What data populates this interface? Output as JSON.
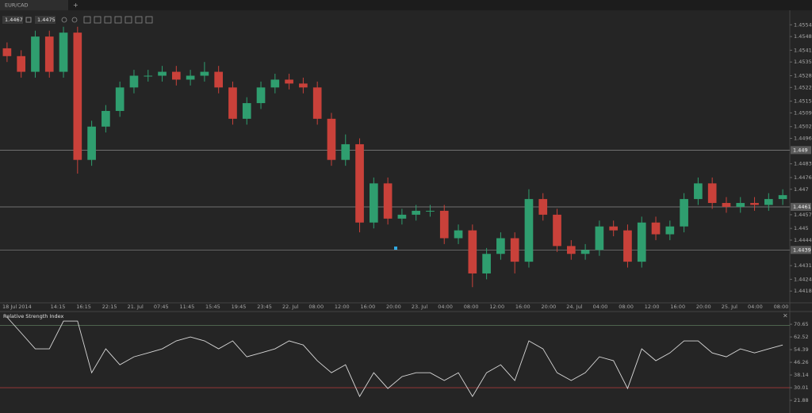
{
  "tab": {
    "label": "EUR/CAD"
  },
  "toolbar": {
    "bid": "1.4467",
    "ask": "1.4475"
  },
  "chart_data": [
    {
      "type": "candlestick",
      "open": [
        1.4542,
        1.4538,
        1.453,
        1.4548,
        1.453,
        1.455,
        1.4485,
        1.4502,
        1.451,
        1.4522,
        1.4528,
        1.4528,
        1.453,
        1.4526,
        1.4528,
        1.453,
        1.4522,
        1.4506,
        1.4514,
        1.4522,
        1.4526,
        1.4524,
        1.4522,
        1.4506,
        1.4485,
        1.4493,
        1.4453,
        1.4473,
        1.4455,
        1.4457,
        1.4459,
        1.4459,
        1.4445,
        1.4449,
        1.4427,
        1.4437,
        1.4445,
        1.4433,
        1.4465,
        1.4457,
        1.4441,
        1.4437,
        1.4439,
        1.4451,
        1.4449,
        1.4433,
        1.4453,
        1.4447,
        1.4451,
        1.4465,
        1.4473,
        1.4463,
        1.4461,
        1.4463,
        1.4462,
        1.4465
      ],
      "high": [
        1.4545,
        1.4541,
        1.4551,
        1.4551,
        1.4553,
        1.4553,
        1.4505,
        1.4513,
        1.4525,
        1.4531,
        1.4531,
        1.4533,
        1.4533,
        1.4531,
        1.4535,
        1.4533,
        1.4525,
        1.4517,
        1.4525,
        1.4529,
        1.4529,
        1.4527,
        1.4525,
        1.4509,
        1.4498,
        1.4496,
        1.4476,
        1.4476,
        1.446,
        1.4462,
        1.4462,
        1.4462,
        1.4452,
        1.4452,
        1.444,
        1.4448,
        1.4448,
        1.447,
        1.4468,
        1.446,
        1.4444,
        1.4442,
        1.4454,
        1.4454,
        1.4452,
        1.4456,
        1.4456,
        1.4454,
        1.4468,
        1.4476,
        1.4476,
        1.4466,
        1.4466,
        1.4466,
        1.4468,
        1.447
      ],
      "low": [
        1.4535,
        1.4527,
        1.4527,
        1.4527,
        1.4527,
        1.4478,
        1.4482,
        1.4499,
        1.4507,
        1.4519,
        1.4525,
        1.4525,
        1.4523,
        1.4523,
        1.4525,
        1.4519,
        1.4503,
        1.4503,
        1.4511,
        1.4519,
        1.4521,
        1.4519,
        1.4503,
        1.4482,
        1.4482,
        1.4448,
        1.445,
        1.4452,
        1.4452,
        1.4454,
        1.4456,
        1.4442,
        1.4442,
        1.442,
        1.4424,
        1.4434,
        1.4427,
        1.443,
        1.4454,
        1.4438,
        1.4434,
        1.4434,
        1.4436,
        1.4446,
        1.443,
        1.443,
        1.4444,
        1.4444,
        1.4448,
        1.4462,
        1.446,
        1.4458,
        1.4458,
        1.4459,
        1.4459,
        1.4462
      ],
      "close": [
        1.4538,
        1.453,
        1.4548,
        1.453,
        1.455,
        1.4485,
        1.4502,
        1.451,
        1.4522,
        1.4528,
        1.4528,
        1.453,
        1.4526,
        1.4528,
        1.453,
        1.4522,
        1.4506,
        1.4514,
        1.4522,
        1.4526,
        1.4524,
        1.4522,
        1.4506,
        1.4485,
        1.4493,
        1.4453,
        1.4473,
        1.4455,
        1.4457,
        1.4459,
        1.4459,
        1.4445,
        1.4449,
        1.4427,
        1.4437,
        1.4445,
        1.4433,
        1.4465,
        1.4457,
        1.4441,
        1.4437,
        1.4439,
        1.4451,
        1.4449,
        1.4433,
        1.4453,
        1.4447,
        1.4451,
        1.4465,
        1.4473,
        1.4463,
        1.4461,
        1.4463,
        1.4462,
        1.4465,
        1.4467
      ],
      "up_color": "#2f9e6f",
      "down_color": "#c9413a",
      "time_labels": [
        "18 Jul 2014",
        "14:15",
        "16:15",
        "22:15",
        "21. Jul",
        "07:45",
        "11:45",
        "15:45",
        "19:45",
        "23:45",
        "22. Jul",
        "08:00",
        "12:00",
        "16:00",
        "20:00",
        "23. Jul",
        "04:00",
        "08:00",
        "12:00",
        "16:00",
        "20:00",
        "24. Jul",
        "04:00",
        "08:00",
        "12:00",
        "16:00",
        "20:00",
        "25. Jul",
        "04:00",
        "08:00"
      ],
      "ylim": [
        1.4412,
        1.4561
      ],
      "yticks": [
        1.4554,
        1.4548,
        1.4541,
        1.4535,
        1.4528,
        1.4522,
        1.4515,
        1.4509,
        1.4502,
        1.4496,
        1.4483,
        1.4476,
        1.447,
        1.4457,
        1.445,
        1.4444,
        1.4431,
        1.4424,
        1.4418
      ],
      "levels": [
        1.449,
        1.4461,
        1.4439
      ]
    },
    {
      "type": "line",
      "title": "Relative Strength Index",
      "values": [
        75.2,
        65.1,
        54.9,
        54.9,
        72.7,
        72.7,
        39.6,
        54.9,
        44.7,
        49.8,
        52.3,
        54.9,
        60.0,
        62.5,
        60.0,
        54.9,
        60.0,
        49.8,
        52.3,
        54.9,
        60.0,
        57.4,
        47.3,
        39.6,
        44.7,
        24.4,
        39.6,
        29.5,
        37.1,
        39.6,
        39.6,
        34.6,
        39.6,
        24.4,
        39.6,
        44.7,
        34.6,
        60.0,
        54.9,
        39.6,
        34.6,
        39.6,
        49.8,
        47.3,
        29.5,
        54.9,
        47.3,
        52.3,
        60.0,
        60.0,
        52.3,
        49.8,
        54.9,
        52.3,
        54.9,
        57.4
      ],
      "color": "#d8d8d8",
      "ylim": [
        14.8,
        77.8
      ],
      "yticks": [
        70.65,
        62.52,
        54.39,
        46.26,
        38.14,
        30.01,
        21.88
      ],
      "levels": [
        70,
        30
      ],
      "level_colors": [
        "#5d7a5d",
        "#a33a3a"
      ]
    }
  ]
}
